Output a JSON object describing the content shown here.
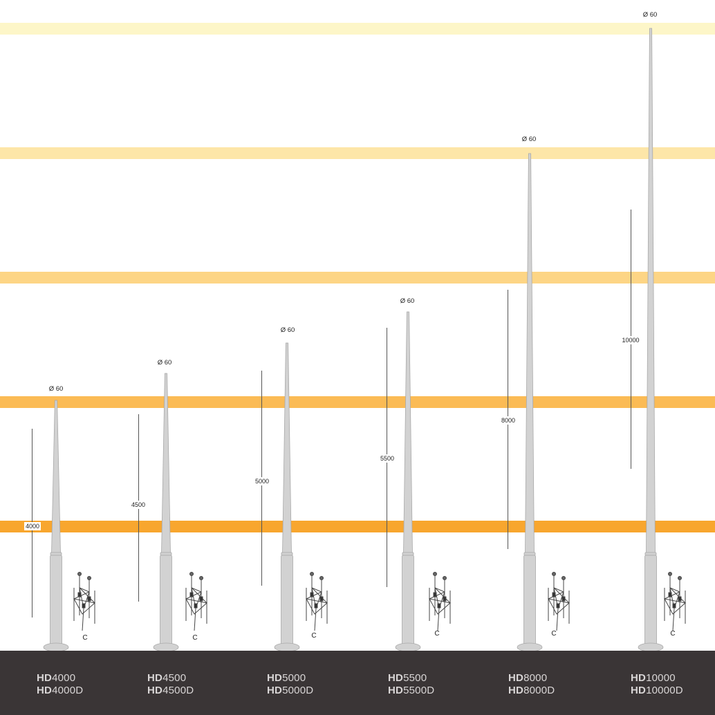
{
  "colors": {
    "bands": [
      "#fdf6c8",
      "#fde6a8",
      "#fdd585",
      "#fbbb55",
      "#f8a62e"
    ],
    "footer": "#3a3536",
    "pole": "#d2d2d2",
    "pole_edge": "#a9a9a9"
  },
  "poles": [
    {
      "model_bold": "HD",
      "model_num": "4000",
      "model2_bold": "HD",
      "model2_num": "4000D",
      "diameter": "Ø 60",
      "height": "4000",
      "cage": "C"
    },
    {
      "model_bold": "HD",
      "model_num": "4500",
      "model2_bold": "HD",
      "model2_num": "4500D",
      "diameter": "Ø 60",
      "height": "4500",
      "cage": "C"
    },
    {
      "model_bold": "HD",
      "model_num": "5000",
      "model2_bold": "HD",
      "model2_num": "5000D",
      "diameter": "Ø 60",
      "height": "5000",
      "cage": "C"
    },
    {
      "model_bold": "HD",
      "model_num": "5500",
      "model2_bold": "HD",
      "model2_num": "5500D",
      "diameter": "Ø 60",
      "height": "5500",
      "cage": "C"
    },
    {
      "model_bold": "HD",
      "model_num": "8000",
      "model2_bold": "HD",
      "model2_num": "8000D",
      "diameter": "Ø 60",
      "height": "8000",
      "cage": "C"
    },
    {
      "model_bold": "HD",
      "model_num": "10000",
      "model2_bold": "HD",
      "model2_num": "10000D",
      "diameter": "Ø 60",
      "height": "10000",
      "cage": "C"
    }
  ]
}
